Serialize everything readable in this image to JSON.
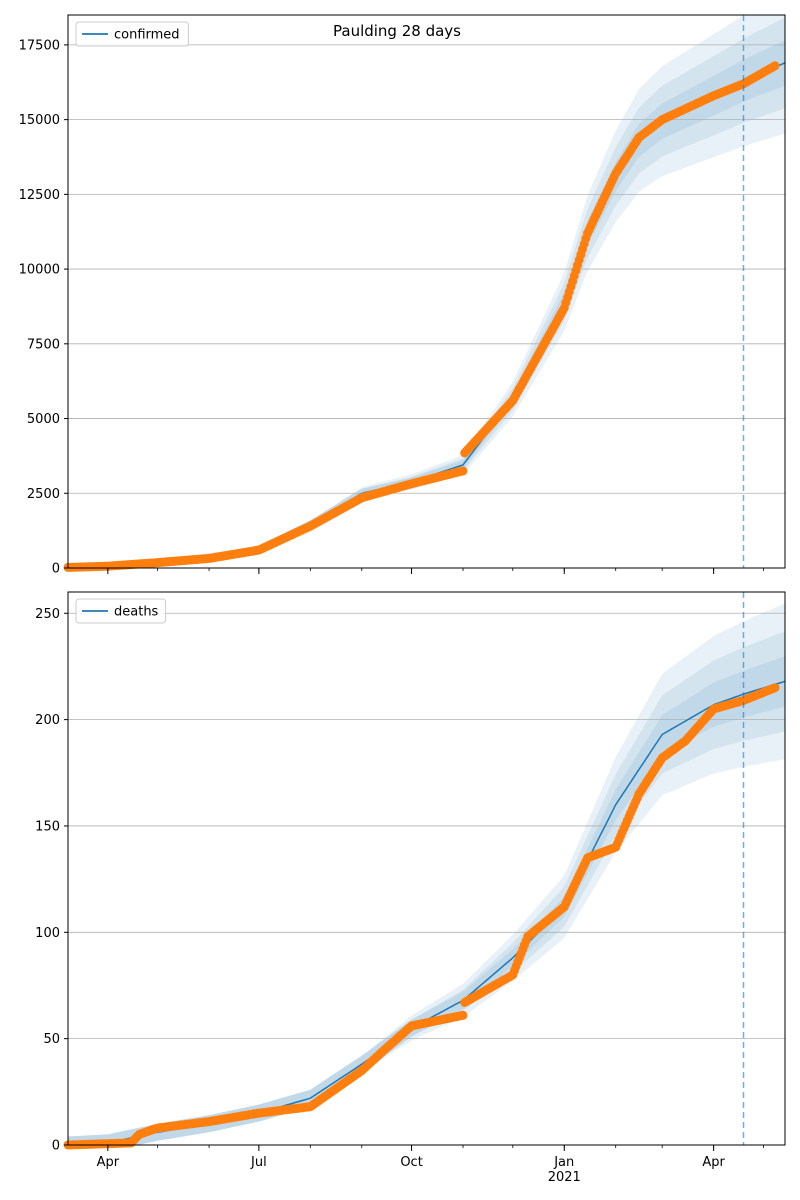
{
  "figure_title": "Paulding 28 days",
  "colors": {
    "model_line": "#1f77b4",
    "band": "#1f77b4",
    "observed": "#ff7f0e",
    "grid": "#b0b0b0",
    "forecast_start_line": "#1f77b4"
  },
  "chart_data": [
    {
      "type": "line",
      "legend": [
        "confirmed"
      ],
      "legend_location": "upper-left",
      "grid": "horizontal",
      "x_axis": {
        "type": "date",
        "range": [
          "2020-03-08",
          "2021-05-14"
        ],
        "tick_labels": [
          {
            "date": "2020-04-01",
            "label": ""
          },
          {
            "date": "2020-07-01",
            "label": ""
          },
          {
            "date": "2020-10-01",
            "label": ""
          },
          {
            "date": "2021-01-01",
            "label": ""
          },
          {
            "date": "2021-04-01",
            "label": ""
          }
        ]
      },
      "y_axis": {
        "range": [
          0,
          18500
        ],
        "ticks": [
          0,
          2500,
          5000,
          7500,
          10000,
          12500,
          15000,
          17500
        ]
      },
      "forecast_start": "2021-04-19",
      "model_median": {
        "x": [
          "2020-03-08",
          "2020-04-01",
          "2020-05-01",
          "2020-06-01",
          "2020-07-01",
          "2020-08-01",
          "2020-09-01",
          "2020-10-01",
          "2020-11-01",
          "2020-12-01",
          "2021-01-01",
          "2021-01-15",
          "2021-02-01",
          "2021-02-15",
          "2021-03-01",
          "2021-04-01",
          "2021-04-19",
          "2021-05-14"
        ],
        "y": [
          20,
          60,
          180,
          330,
          600,
          1450,
          2500,
          2880,
          3450,
          5650,
          8900,
          11200,
          13100,
          14300,
          14950,
          15800,
          16300,
          16900
        ]
      },
      "observed": {
        "x": [
          "2020-03-08",
          "2020-04-01",
          "2020-05-01",
          "2020-06-01",
          "2020-07-01",
          "2020-08-01",
          "2020-09-01",
          "2020-10-01",
          "2020-11-01",
          "2020-11-02",
          "2020-12-01",
          "2021-01-01",
          "2021-01-15",
          "2021-02-01",
          "2021-02-15",
          "2021-03-01",
          "2021-04-01",
          "2021-04-19",
          "2021-05-08"
        ],
        "y": [
          20,
          60,
          180,
          320,
          600,
          1400,
          2350,
          2820,
          3250,
          3850,
          5600,
          8700,
          11200,
          13200,
          14400,
          15000,
          15800,
          16200,
          16800
        ]
      }
    },
    {
      "type": "line",
      "legend": [
        "deaths"
      ],
      "legend_location": "upper-left",
      "grid": "horizontal",
      "x_axis": {
        "type": "date",
        "range": [
          "2020-03-08",
          "2021-05-14"
        ],
        "tick_labels": [
          {
            "date": "2020-04-01",
            "label": "Apr"
          },
          {
            "date": "2020-07-01",
            "label": "Jul"
          },
          {
            "date": "2020-10-01",
            "label": "Oct"
          },
          {
            "date": "2021-01-01",
            "label": "Jan\n2021"
          },
          {
            "date": "2021-04-01",
            "label": "Apr"
          }
        ]
      },
      "y_axis": {
        "range": [
          0,
          260
        ],
        "ticks": [
          0,
          50,
          100,
          150,
          200,
          250
        ]
      },
      "forecast_start": "2021-04-19",
      "model_median": {
        "x": [
          "2020-03-08",
          "2020-04-01",
          "2020-05-01",
          "2020-06-01",
          "2020-07-01",
          "2020-08-01",
          "2020-09-01",
          "2020-10-01",
          "2020-11-01",
          "2020-12-01",
          "2021-01-01",
          "2021-02-01",
          "2021-03-01",
          "2021-04-01",
          "2021-04-19",
          "2021-05-14"
        ],
        "y": [
          0,
          1,
          6,
          10,
          15,
          22,
          38,
          55,
          68,
          88,
          112,
          160,
          193,
          207,
          212,
          218
        ]
      },
      "observed": {
        "x": [
          "2020-03-08",
          "2020-04-15",
          "2020-04-20",
          "2020-05-01",
          "2020-06-01",
          "2020-07-01",
          "2020-08-01",
          "2020-09-01",
          "2020-09-15",
          "2020-10-01",
          "2020-11-01",
          "2020-11-02",
          "2020-12-01",
          "2020-12-10",
          "2021-01-01",
          "2021-01-15",
          "2021-02-01",
          "2021-02-15",
          "2021-03-01",
          "2021-03-15",
          "2021-04-01",
          "2021-04-19",
          "2021-05-08"
        ],
        "y": [
          0,
          1,
          5,
          8,
          11,
          15,
          18,
          35,
          45,
          56,
          61,
          67,
          80,
          98,
          112,
          135,
          140,
          165,
          182,
          190,
          205,
          209,
          215
        ]
      },
      "uncertainty_bands_halfwidth": [
        0.1,
        0.2,
        0.3
      ]
    }
  ]
}
